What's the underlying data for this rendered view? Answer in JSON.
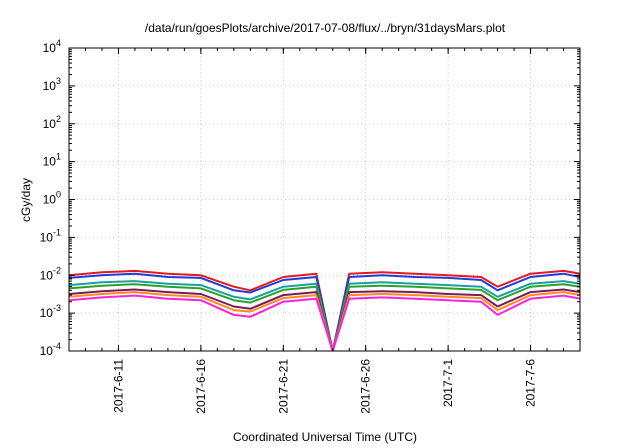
{
  "chart_data": {
    "type": "line",
    "title": "/data/run/goesPlots/archive/2017-07-08/flux/../bryn/31daysMars.plot",
    "xlabel": "Coordinated Universal Time (UTC)",
    "ylabel": "cGy/day",
    "y_scale": "log",
    "ylim_exponent": [
      -4,
      4
    ],
    "y_ticks": [
      {
        "base": "10",
        "exp": "4"
      },
      {
        "base": "10",
        "exp": "3"
      },
      {
        "base": "10",
        "exp": "2"
      },
      {
        "base": "10",
        "exp": "1"
      },
      {
        "base": "10",
        "exp": "0"
      },
      {
        "base": "10",
        "exp": "-1"
      },
      {
        "base": "10",
        "exp": "-2"
      },
      {
        "base": "10",
        "exp": "-3"
      },
      {
        "base": "10",
        "exp": "-4"
      }
    ],
    "xlim": [
      "2017-06-08",
      "2017-07-09"
    ],
    "x_ticks": [
      "2017-6-11",
      "2017-6-16",
      "2017-6-21",
      "2017-6-26",
      "2017-7-1",
      "2017-7-6"
    ],
    "x_tick_dates": [
      "2017-06-11",
      "2017-06-16",
      "2017-06-21",
      "2017-06-26",
      "2017-07-01",
      "2017-07-06"
    ],
    "grid": true,
    "series": [
      {
        "color": "#e31a1c",
        "x": [
          "2017-06-08",
          "2017-06-10",
          "2017-06-12",
          "2017-06-14",
          "2017-06-16",
          "2017-06-18",
          "2017-06-19",
          "2017-06-21",
          "2017-06-23",
          "2017-06-24",
          "2017-06-25",
          "2017-06-27",
          "2017-06-29",
          "2017-07-01",
          "2017-07-03",
          "2017-07-04",
          "2017-07-06",
          "2017-07-08",
          "2017-07-09"
        ],
        "y": [
          0.01,
          0.012,
          0.013,
          0.011,
          0.01,
          0.005,
          0.004,
          0.009,
          0.011,
          0.0001,
          0.011,
          0.012,
          0.011,
          0.01,
          0.009,
          0.005,
          0.011,
          0.013,
          0.011
        ]
      },
      {
        "color": "#1f3bdc",
        "x": [
          "2017-06-08",
          "2017-06-10",
          "2017-06-12",
          "2017-06-14",
          "2017-06-16",
          "2017-06-18",
          "2017-06-19",
          "2017-06-21",
          "2017-06-23",
          "2017-06-24",
          "2017-06-25",
          "2017-06-27",
          "2017-06-29",
          "2017-07-01",
          "2017-07-03",
          "2017-07-04",
          "2017-07-06",
          "2017-07-08",
          "2017-07-09"
        ],
        "y": [
          0.0085,
          0.01,
          0.011,
          0.009,
          0.0085,
          0.004,
          0.0035,
          0.0075,
          0.009,
          0.0001,
          0.009,
          0.01,
          0.009,
          0.0085,
          0.0075,
          0.004,
          0.009,
          0.011,
          0.009
        ]
      },
      {
        "color": "#1aa0a0",
        "x": [
          "2017-06-08",
          "2017-06-10",
          "2017-06-12",
          "2017-06-14",
          "2017-06-16",
          "2017-06-18",
          "2017-06-19",
          "2017-06-21",
          "2017-06-23",
          "2017-06-24",
          "2017-06-25",
          "2017-06-27",
          "2017-06-29",
          "2017-07-01",
          "2017-07-03",
          "2017-07-04",
          "2017-07-06",
          "2017-07-08",
          "2017-07-09"
        ],
        "y": [
          0.0055,
          0.0065,
          0.007,
          0.006,
          0.0055,
          0.0027,
          0.0023,
          0.005,
          0.006,
          0.0001,
          0.006,
          0.0065,
          0.006,
          0.0055,
          0.005,
          0.0027,
          0.006,
          0.007,
          0.006
        ]
      },
      {
        "color": "#2ca02c",
        "x": [
          "2017-06-08",
          "2017-06-10",
          "2017-06-12",
          "2017-06-14",
          "2017-06-16",
          "2017-06-18",
          "2017-06-19",
          "2017-06-21",
          "2017-06-23",
          "2017-06-24",
          "2017-06-25",
          "2017-06-27",
          "2017-06-29",
          "2017-07-01",
          "2017-07-03",
          "2017-07-04",
          "2017-07-06",
          "2017-07-08",
          "2017-07-09"
        ],
        "y": [
          0.0045,
          0.0053,
          0.0058,
          0.005,
          0.0045,
          0.0022,
          0.0019,
          0.0041,
          0.005,
          0.0001,
          0.005,
          0.0053,
          0.005,
          0.0045,
          0.0041,
          0.0022,
          0.005,
          0.0058,
          0.005
        ]
      },
      {
        "color": "#7a1a5a",
        "x": [
          "2017-06-08",
          "2017-06-10",
          "2017-06-12",
          "2017-06-14",
          "2017-06-16",
          "2017-06-18",
          "2017-06-19",
          "2017-06-21",
          "2017-06-23",
          "2017-06-24",
          "2017-06-25",
          "2017-06-27",
          "2017-06-29",
          "2017-07-01",
          "2017-07-03",
          "2017-07-04",
          "2017-07-06",
          "2017-07-08",
          "2017-07-09"
        ],
        "y": [
          0.0032,
          0.0038,
          0.0042,
          0.0036,
          0.0032,
          0.0015,
          0.0013,
          0.003,
          0.0036,
          0.0001,
          0.0036,
          0.0038,
          0.0036,
          0.0032,
          0.003,
          0.0015,
          0.0036,
          0.0042,
          0.0036
        ]
      },
      {
        "color": "#ff8c1a",
        "x": [
          "2017-06-08",
          "2017-06-10",
          "2017-06-12",
          "2017-06-14",
          "2017-06-16",
          "2017-06-18",
          "2017-06-19",
          "2017-06-21",
          "2017-06-23",
          "2017-06-24",
          "2017-06-25",
          "2017-06-27",
          "2017-06-29",
          "2017-07-01",
          "2017-07-03",
          "2017-07-04",
          "2017-07-06",
          "2017-07-08",
          "2017-07-09"
        ],
        "y": [
          0.0027,
          0.0032,
          0.0036,
          0.003,
          0.0027,
          0.0012,
          0.0011,
          0.0025,
          0.003,
          0.0001,
          0.003,
          0.0032,
          0.003,
          0.0027,
          0.0025,
          0.0012,
          0.003,
          0.0036,
          0.003
        ]
      },
      {
        "color": "#ff22dd",
        "x": [
          "2017-06-08",
          "2017-06-10",
          "2017-06-12",
          "2017-06-14",
          "2017-06-16",
          "2017-06-18",
          "2017-06-19",
          "2017-06-21",
          "2017-06-23",
          "2017-06-24",
          "2017-06-25",
          "2017-06-27",
          "2017-06-29",
          "2017-07-01",
          "2017-07-03",
          "2017-07-04",
          "2017-07-06",
          "2017-07-08",
          "2017-07-09"
        ],
        "y": [
          0.0022,
          0.0026,
          0.0029,
          0.0024,
          0.0022,
          0.0009,
          0.0008,
          0.002,
          0.0024,
          0.0001,
          0.0024,
          0.0026,
          0.0024,
          0.0022,
          0.002,
          0.0009,
          0.0024,
          0.0029,
          0.0024
        ]
      }
    ]
  }
}
